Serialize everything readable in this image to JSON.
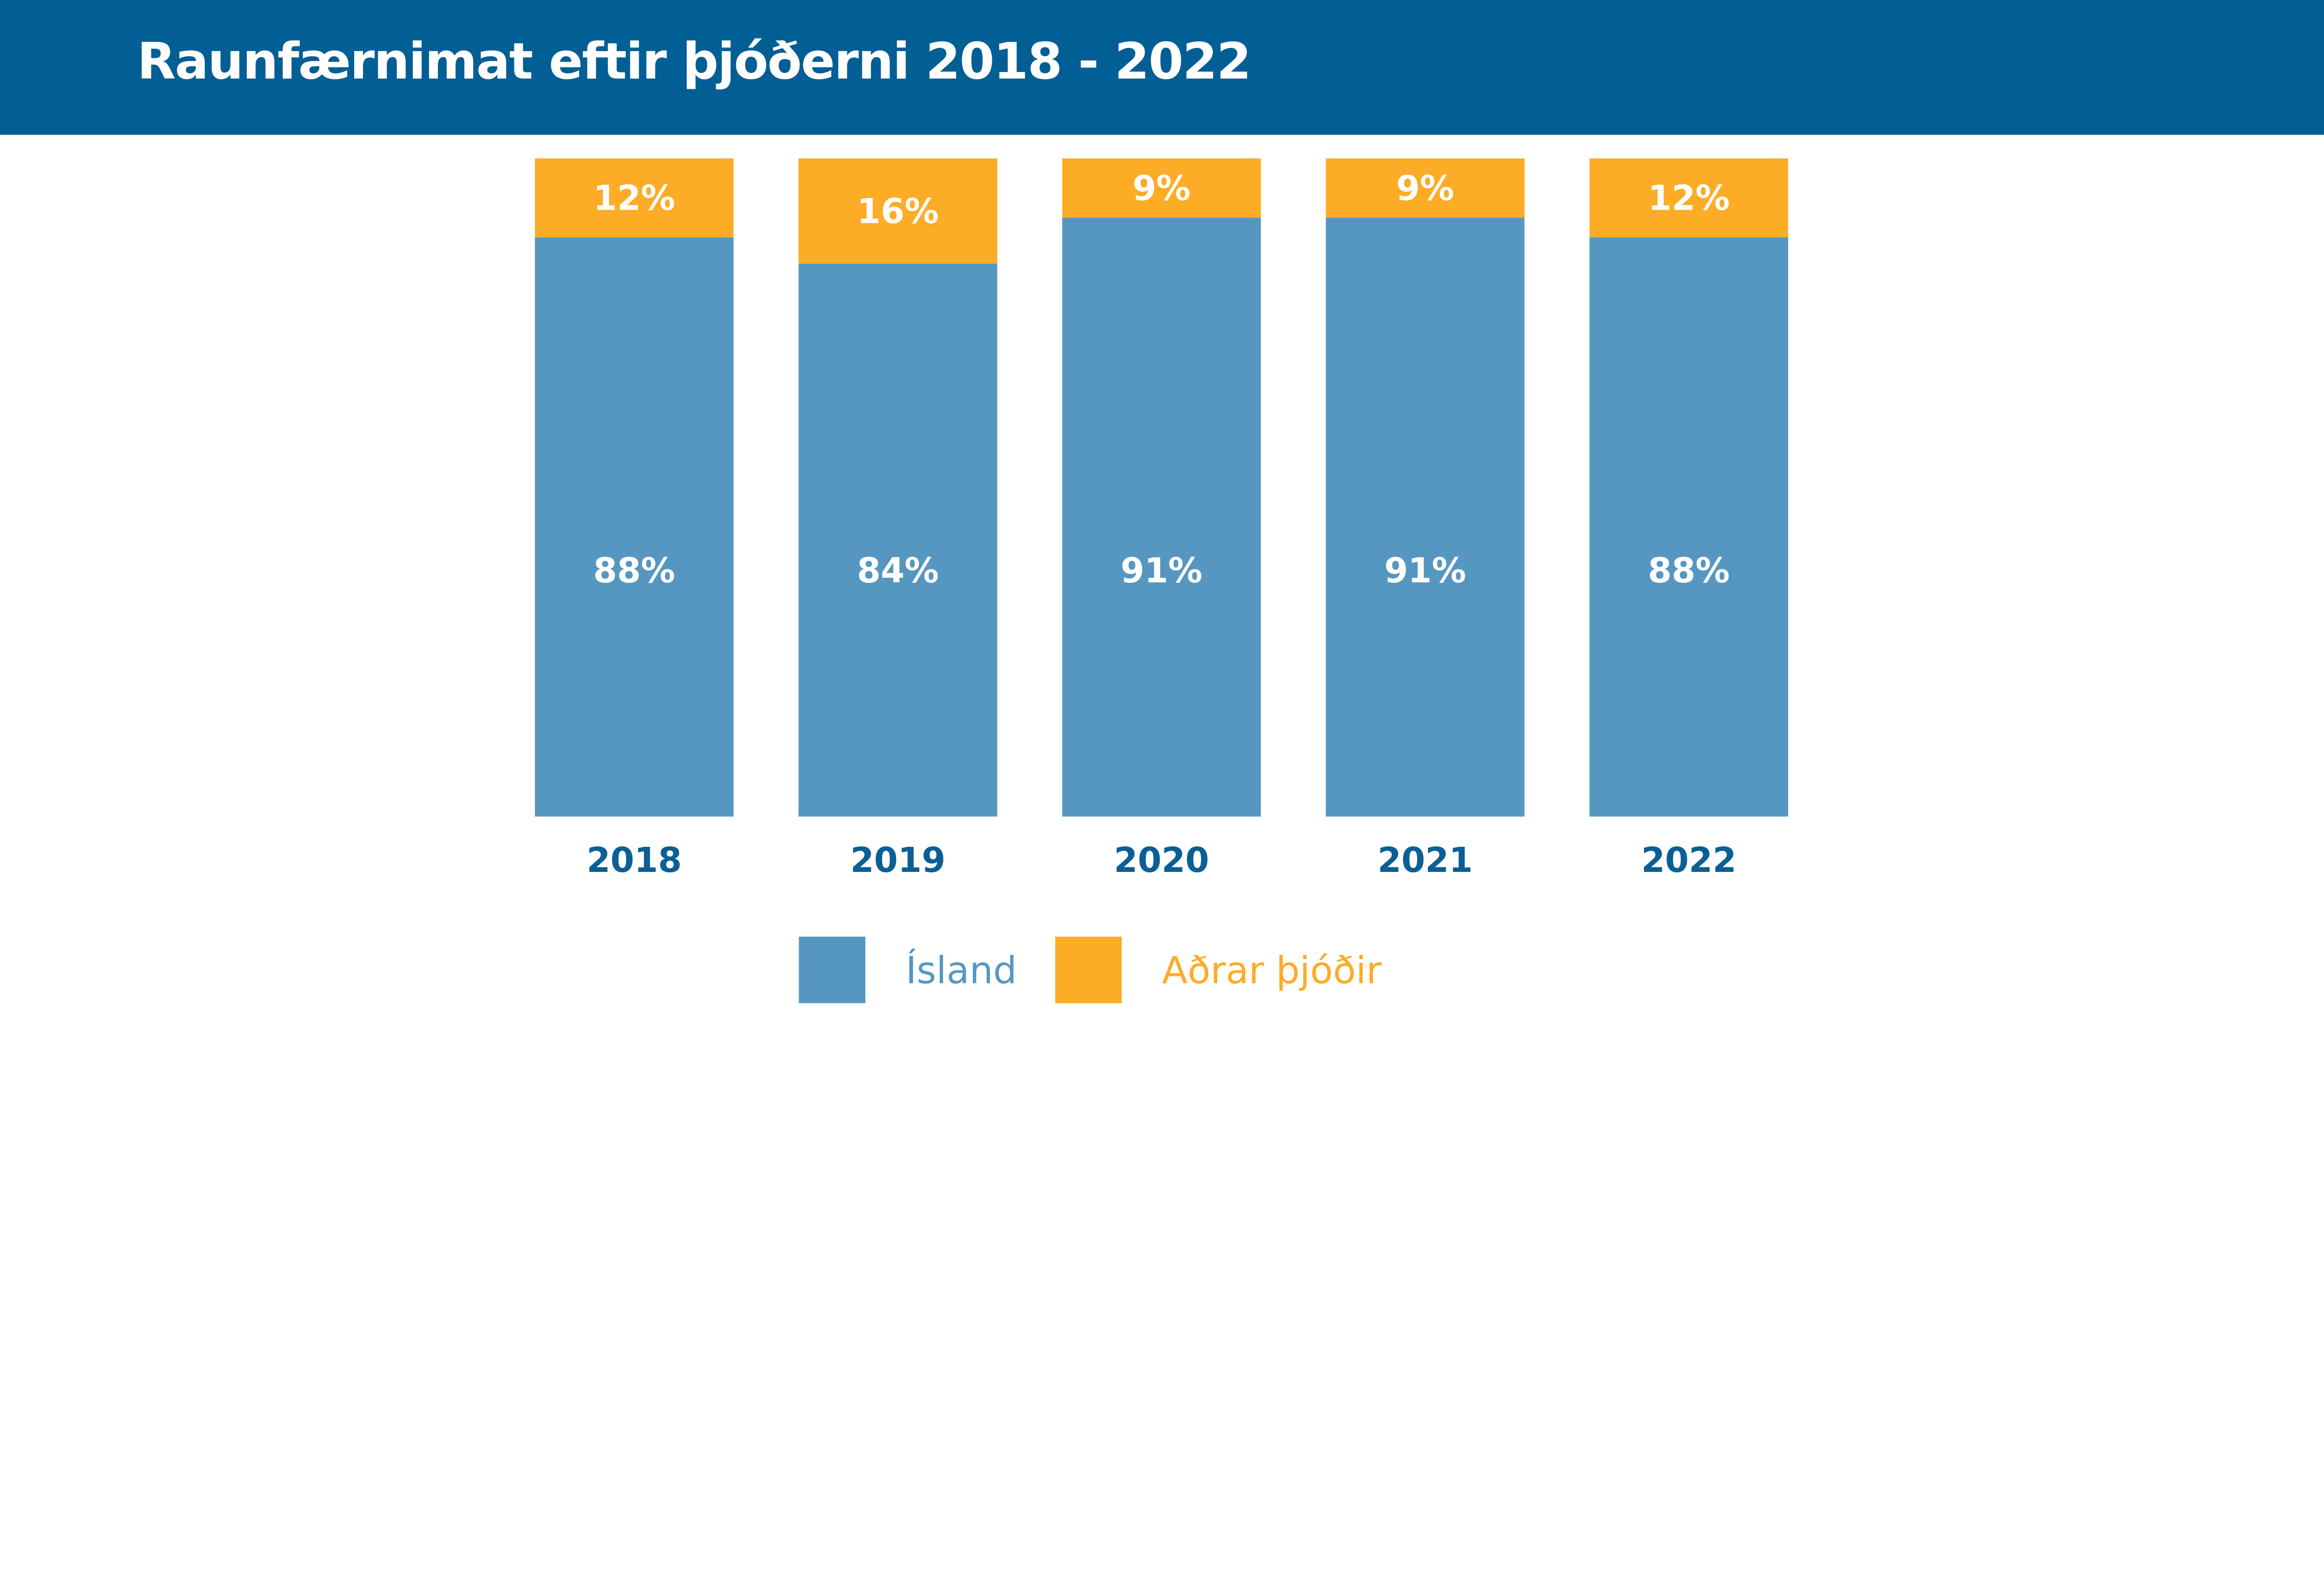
{
  "chart_data": {
    "type": "bar",
    "stacked": true,
    "title": "Raunfærnimat eftir þjóðerni 2018 - 2022",
    "categories": [
      "2018",
      "2019",
      "2020",
      "2021",
      "2022"
    ],
    "series": [
      {
        "name": "Ísland",
        "values": [
          88,
          84,
          91,
          91,
          88
        ],
        "labels": [
          "88%",
          "84%",
          "91%",
          "91%",
          "88%"
        ],
        "color": "#5697C1"
      },
      {
        "name": "Aðrar þjóðir",
        "values": [
          12,
          16,
          9,
          9,
          12
        ],
        "labels": [
          "12%",
          "16%",
          "9%",
          "9%",
          "12%"
        ],
        "color": "#FDAC26"
      }
    ],
    "unit": "%",
    "ylim": [
      0,
      100
    ],
    "grid": false,
    "legend": "bottom"
  },
  "colors": {
    "header": "#025F95",
    "axis_text": "#0A5F94"
  }
}
